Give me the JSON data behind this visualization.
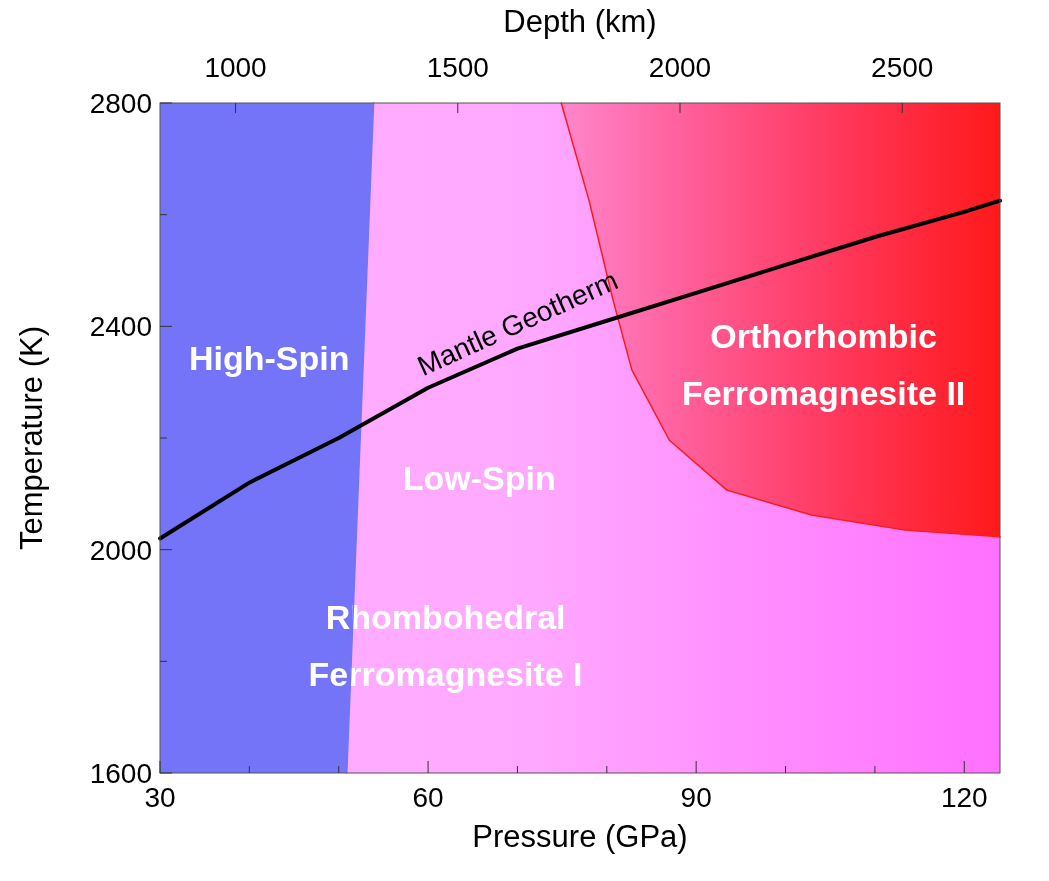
{
  "chart_data": {
    "type": "line",
    "xlabel": "Pressure (GPa)",
    "ylabel": "Temperature (K)",
    "x2label": "Depth (km)",
    "xlim": [
      30,
      124
    ],
    "xticks": [
      30,
      {
        "value": 40,
        "label": null
      },
      {
        "value": 50,
        "label": null
      },
      60,
      {
        "value": 70,
        "label": null
      },
      {
        "value": 80,
        "label": null
      },
      90,
      {
        "value": 100,
        "label": null
      },
      {
        "value": 110,
        "label": null
      },
      120
    ],
    "x2lim": [
      830,
      2720
    ],
    "x2ticks": [
      1000,
      1500,
      2000,
      2500
    ],
    "ylim": [
      1600,
      2800
    ],
    "yticks": [
      1600,
      {
        "value": 1800,
        "label": null
      },
      2000,
      {
        "value": 2200,
        "label": null
      },
      2400,
      {
        "value": 2600,
        "label": null
      },
      2800
    ],
    "series": [
      {
        "color": "#7474f8",
        "x": [
          50.9,
          53.9
        ],
        "values": [
          1600,
          2800
        ]
      },
      {
        "color": "#ff1a1a",
        "x": [
          74.9,
          78,
          80.7,
          82.8,
          87,
          93.4,
          102.9,
          113.4,
          124
        ],
        "values": [
          2800,
          2626,
          2447,
          2322,
          2196,
          2107,
          2062,
          2035,
          2023
        ]
      },
      {
        "name": "Mantle Geotherm",
        "color": "#000000",
        "x": [
          30,
          40,
          50,
          60,
          70,
          80,
          90,
          100,
          110,
          120,
          124
        ],
        "values": [
          2020,
          2120,
          2200,
          2290,
          2360,
          2410,
          2460,
          2510,
          2560,
          2605,
          2625
        ]
      }
    ],
    "annotations": [
      "High-Spin",
      "Low-Spin",
      "Rhombohedral\nFerromagnesite I",
      "Orthorhombic\nFerromagnesite II"
    ]
  }
}
